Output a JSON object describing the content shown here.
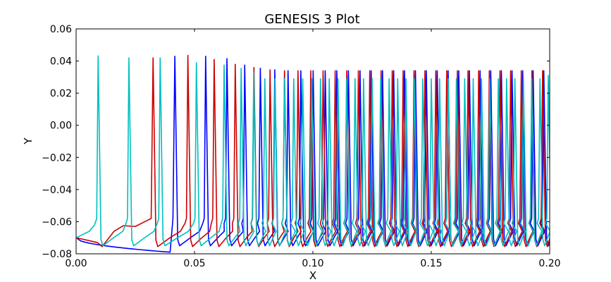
{
  "chart_data": {
    "type": "line",
    "title": "GENESIS 3 Plot",
    "xlabel": "X",
    "ylabel": "Y",
    "xlim": [
      0.0,
      0.2
    ],
    "ylim": [
      -0.08,
      0.06
    ],
    "x_ticks": [
      "0.00",
      "0.05",
      "0.10",
      "0.15",
      "0.20"
    ],
    "y_ticks": [
      "−0.08",
      "−0.06",
      "−0.04",
      "−0.02",
      "0.00",
      "0.02",
      "0.04",
      "0.06"
    ],
    "grid": false,
    "legend": "none",
    "series": [
      {
        "color": "#0000ff",
        "start_value": -0.07,
        "baseline_min": -0.079,
        "reset_value": -0.075,
        "spike_times": [
          0.0417,
          0.0547,
          0.0637,
          0.0712,
          0.0778,
          0.0839,
          0.0895,
          0.0949,
          0.1001,
          0.1052,
          0.1101,
          0.115,
          0.1199,
          0.1246,
          0.1294,
          0.1341,
          0.1387,
          0.1433,
          0.1479,
          0.1525,
          0.1571,
          0.1616,
          0.1661,
          0.1706,
          0.1751,
          0.1796,
          0.1841,
          0.1886,
          0.193,
          0.1975
        ],
        "spike_peaks": [
          0.043,
          0.043,
          0.0415,
          0.0375,
          0.0355,
          0.0345,
          0.034,
          0.034,
          0.034,
          0.034,
          0.034,
          0.034,
          0.034,
          0.034,
          0.034,
          0.034,
          0.034,
          0.034,
          0.034,
          0.034,
          0.034,
          0.034,
          0.034,
          0.034,
          0.034,
          0.034,
          0.034,
          0.034,
          0.034,
          0.034
        ]
      },
      {
        "color": "#cc0000",
        "start_value": -0.07,
        "plateau_value": -0.0625,
        "reset_value": -0.0755,
        "spike_times": [
          0.0325,
          0.0472,
          0.0583,
          0.0672,
          0.0751,
          0.0819,
          0.088,
          0.0937,
          0.0991,
          0.1043,
          0.1094,
          0.1143,
          0.1192,
          0.124,
          0.1288,
          0.1335,
          0.1381,
          0.1427,
          0.1473,
          0.1519,
          0.1565,
          0.161,
          0.1655,
          0.17,
          0.1745,
          0.179,
          0.1835,
          0.188,
          0.1925,
          0.197
        ],
        "spike_peaks": [
          0.042,
          0.0435,
          0.041,
          0.038,
          0.036,
          0.0345,
          0.034,
          0.034,
          0.034,
          0.034,
          0.034,
          0.034,
          0.034,
          0.034,
          0.034,
          0.034,
          0.034,
          0.034,
          0.034,
          0.034,
          0.034,
          0.034,
          0.034,
          0.034,
          0.034,
          0.034,
          0.034,
          0.034,
          0.034,
          0.034
        ]
      },
      {
        "color": "#00bfbf",
        "start_value": -0.07,
        "reset_value": -0.075,
        "spike_times": [
          0.0093,
          0.0223,
          0.0355,
          0.0508,
          0.0625,
          0.0697,
          0.075,
          0.0797,
          0.084,
          0.088,
          0.0919,
          0.0957,
          0.0995,
          0.1032,
          0.1069,
          0.1106,
          0.1142,
          0.1178,
          0.1214,
          0.125,
          0.1286,
          0.1322,
          0.1358,
          0.1393,
          0.1429,
          0.1464,
          0.15,
          0.1535,
          0.1571,
          0.1606,
          0.1641,
          0.1677,
          0.1712,
          0.1747,
          0.1783,
          0.1818,
          0.1853,
          0.1889,
          0.1924,
          0.1959,
          0.1994
        ],
        "spike_peaks": [
          0.0432,
          0.042,
          0.042,
          0.039,
          0.0375,
          0.0355,
          0.033,
          0.029,
          0.029,
          0.029,
          0.029,
          0.029,
          0.029,
          0.029,
          0.029,
          0.029,
          0.029,
          0.029,
          0.029,
          0.029,
          0.029,
          0.029,
          0.029,
          0.029,
          0.029,
          0.029,
          0.029,
          0.029,
          0.029,
          0.029,
          0.029,
          0.029,
          0.029,
          0.029,
          0.029,
          0.029,
          0.029,
          0.029,
          0.029,
          0.029,
          0.031
        ]
      }
    ]
  }
}
